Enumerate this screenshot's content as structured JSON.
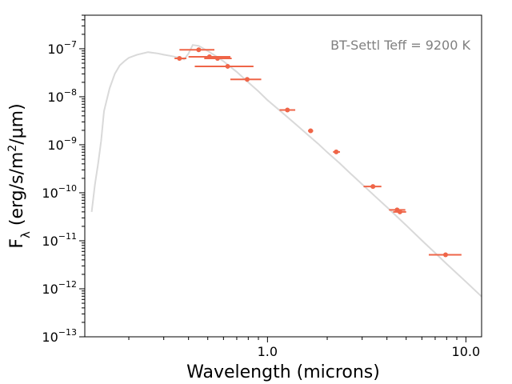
{
  "chart_data": {
    "type": "scatter",
    "title": "",
    "xlabel": "Wavelength (microns)",
    "ylabel": "F_λ (erg/s/m²/μm)",
    "xscale": "log",
    "yscale": "log",
    "xlim": [
      0.12,
      12.0
    ],
    "ylim": [
      1e-13,
      5e-07
    ],
    "x_ticks": [
      {
        "value": 1.0,
        "label": "1.0"
      },
      {
        "value": 10.0,
        "label": "10.0"
      }
    ],
    "y_ticks": [
      {
        "value": 1e-13,
        "base": "10",
        "exp": "−13"
      },
      {
        "value": 1e-12,
        "base": "10",
        "exp": "−12"
      },
      {
        "value": 1e-11,
        "base": "10",
        "exp": "−11"
      },
      {
        "value": 1e-10,
        "base": "10",
        "exp": "−10"
      },
      {
        "value": 1e-09,
        "base": "10",
        "exp": "−9"
      },
      {
        "value": 1e-08,
        "base": "10",
        "exp": "−8"
      },
      {
        "value": 1e-07,
        "base": "10",
        "exp": "−7"
      }
    ],
    "annotation": "BT-Settl Teff = 9200 K",
    "colors": {
      "model": "#d9d9d9",
      "data": "#ef6548"
    },
    "series": [
      {
        "type": "line",
        "points": [
          [
            0.13,
            4e-11
          ],
          [
            0.135,
            1.5e-10
          ],
          [
            0.14,
            4e-10
          ],
          [
            0.145,
            1.2e-09
          ],
          [
            0.15,
            5e-09
          ],
          [
            0.16,
            1.5e-08
          ],
          [
            0.17,
            3e-08
          ],
          [
            0.18,
            4.5e-08
          ],
          [
            0.19,
            5.5e-08
          ],
          [
            0.2,
            6.5e-08
          ],
          [
            0.22,
            7.5e-08
          ],
          [
            0.25,
            8.5e-08
          ],
          [
            0.28,
            8e-08
          ],
          [
            0.3,
            7.5e-08
          ],
          [
            0.33,
            7e-08
          ],
          [
            0.36,
            6.5e-08
          ],
          [
            0.38,
            6e-08
          ],
          [
            0.4,
            8e-08
          ],
          [
            0.42,
            1.2e-07
          ],
          [
            0.45,
            1.15e-07
          ],
          [
            0.5,
            9e-08
          ],
          [
            0.55,
            7e-08
          ],
          [
            0.6,
            5.5e-08
          ],
          [
            0.65,
            4.2e-08
          ],
          [
            0.7,
            3.3e-08
          ],
          [
            0.8,
            2e-08
          ],
          [
            0.9,
            1.3e-08
          ],
          [
            1.0,
            8.5e-09
          ],
          [
            1.2,
            4.5e-09
          ],
          [
            1.4,
            2.6e-09
          ],
          [
            1.6,
            1.6e-09
          ],
          [
            1.8,
            1.05e-09
          ],
          [
            2.0,
            7e-10
          ],
          [
            2.3,
            4.2e-10
          ],
          [
            2.6,
            2.6e-10
          ],
          [
            3.0,
            1.5e-10
          ],
          [
            3.5,
            8.3e-11
          ],
          [
            4.0,
            5e-11
          ],
          [
            5.0,
            2.1e-11
          ],
          [
            6.0,
            1.02e-11
          ],
          [
            7.0,
            5.6e-12
          ],
          [
            8.0,
            3.3e-12
          ],
          [
            10.0,
            1.4e-12
          ],
          [
            12.0,
            6.9e-13
          ]
        ]
      },
      {
        "type": "points_with_xerr",
        "points": [
          {
            "x": 0.36,
            "y": 6.3e-08,
            "xerr": [
              0.34,
              0.39
            ]
          },
          {
            "x": 0.45,
            "y": 9.5e-08,
            "xerr": [
              0.36,
              0.54
            ]
          },
          {
            "x": 0.51,
            "y": 6.8e-08,
            "xerr": [
              0.4,
              0.65
            ]
          },
          {
            "x": 0.56,
            "y": 6.3e-08,
            "xerr": [
              0.48,
              0.66
            ]
          },
          {
            "x": 0.63,
            "y": 4.3e-08,
            "xerr": [
              0.43,
              0.85
            ]
          },
          {
            "x": 0.79,
            "y": 2.3e-08,
            "xerr": [
              0.65,
              0.93
            ]
          },
          {
            "x": 1.26,
            "y": 5.3e-09,
            "xerr": [
              1.15,
              1.38
            ]
          },
          {
            "x": 1.65,
            "y": 1.95e-09,
            "xerr": [
              1.6,
              1.7
            ]
          },
          {
            "x": 2.22,
            "y": 7.1e-10,
            "xerr": [
              2.14,
              2.32
            ]
          },
          {
            "x": 3.4,
            "y": 1.35e-10,
            "xerr": [
              3.05,
              3.75
            ]
          },
          {
            "x": 4.5,
            "y": 4.4e-11,
            "xerr": [
              4.1,
              4.95
            ]
          },
          {
            "x": 4.65,
            "y": 4e-11,
            "xerr": [
              4.3,
              5.0
            ]
          },
          {
            "x": 7.9,
            "y": 5.1e-12,
            "xerr": [
              6.5,
              9.5
            ]
          }
        ]
      }
    ]
  }
}
